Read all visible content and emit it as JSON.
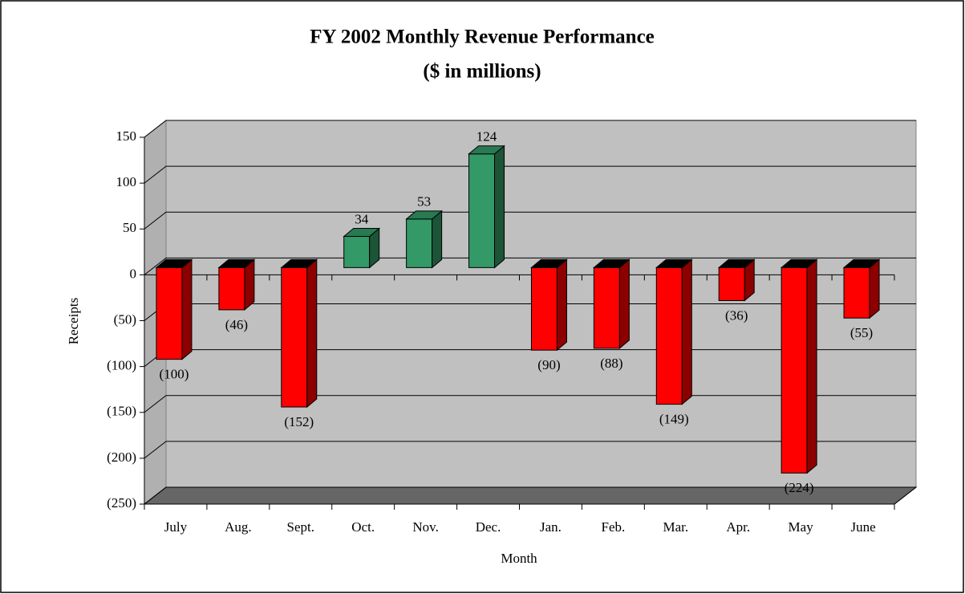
{
  "chart_data": {
    "type": "bar3d",
    "title": "FY 2002 Monthly Revenue Performance",
    "subtitle": "($ in millions)",
    "x_label": "Month",
    "y_label": "Receipts",
    "categories": [
      "July",
      "Aug.",
      "Sept.",
      "Oct.",
      "Nov.",
      "Dec.",
      "Jan.",
      "Feb.",
      "Mar.",
      "Apr.",
      "May",
      "June"
    ],
    "values": [
      -100,
      -46,
      -152,
      34,
      53,
      124,
      -90,
      -88,
      -149,
      -36,
      -224,
      -55
    ],
    "value_labels": [
      "(100)",
      "(46)",
      "(152)",
      "34",
      "53",
      "124",
      "(90)",
      "(88)",
      "(149)",
      "(36)",
      "(224)",
      "(55)"
    ],
    "positive_color": "#339966",
    "negative_color": "#ff0000",
    "ylim": [
      -250,
      150
    ],
    "yticks": [
      {
        "value": -250,
        "label": "(250)"
      },
      {
        "value": -200,
        "label": "(200)"
      },
      {
        "value": -150,
        "label": "(150)"
      },
      {
        "value": -100,
        "label": "(100)"
      },
      {
        "value": -50,
        "label": "(50)"
      },
      0,
      50,
      100,
      150
    ],
    "grid": true
  }
}
